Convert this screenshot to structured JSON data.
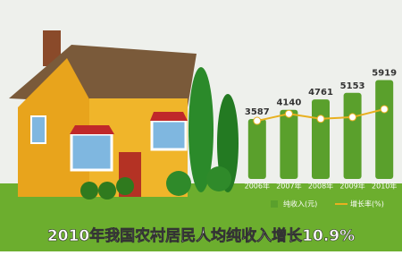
{
  "chart_data": {
    "type": "bar",
    "title": "2010年我国农村居民人均纯收入增长10.9%",
    "categories": [
      "2006年",
      "2007年",
      "2008年",
      "2009年",
      "2010年"
    ],
    "ylim": [
      0,
      6000
    ],
    "y2lim": [
      -10,
      20
    ],
    "series": [
      {
        "name": "纯收入(元)",
        "color": "#5aa02c",
        "values": [
          3587,
          4140,
          4761,
          5153,
          5919
        ]
      },
      {
        "name": "增长率(%)",
        "color": "#e8b020",
        "axis": "y2",
        "values": [
          7.4,
          9.5,
          8.0,
          8.5,
          10.9
        ]
      }
    ]
  }
}
